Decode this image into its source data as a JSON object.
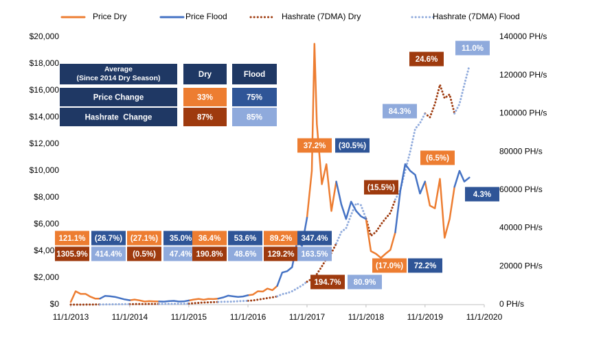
{
  "chart_data": {
    "type": "line",
    "x": [
      "11/1/2013",
      "12/1/2013",
      "1/1/2014",
      "2/1/2014",
      "3/1/2014",
      "4/1/2014",
      "5/1/2014",
      "6/1/2014",
      "7/1/2014",
      "8/1/2014",
      "9/1/2014",
      "10/1/2014",
      "11/1/2014",
      "12/1/2014",
      "1/1/2015",
      "2/1/2015",
      "3/1/2015",
      "4/1/2015",
      "5/1/2015",
      "6/1/2015",
      "7/1/2015",
      "8/1/2015",
      "9/1/2015",
      "10/1/2015",
      "11/1/2015",
      "12/1/2015",
      "1/1/2016",
      "2/1/2016",
      "3/1/2016",
      "4/1/2016",
      "5/1/2016",
      "6/1/2016",
      "7/1/2016",
      "8/1/2016",
      "9/1/2016",
      "10/1/2016",
      "11/1/2016",
      "12/1/2016",
      "1/1/2017",
      "2/1/2017",
      "3/1/2017",
      "4/1/2017",
      "5/1/2017",
      "6/1/2017",
      "7/1/2017",
      "8/1/2017",
      "9/1/2017",
      "10/1/2017",
      "11/1/2017",
      "12/1/2017",
      "12/17/2017",
      "1/1/2018",
      "2/1/2018",
      "3/1/2018",
      "4/1/2018",
      "5/1/2018",
      "6/1/2018",
      "7/1/2018",
      "8/1/2018",
      "9/1/2018",
      "10/1/2018",
      "11/1/2018",
      "12/1/2018",
      "1/1/2019",
      "2/1/2019",
      "3/1/2019",
      "4/1/2019",
      "5/1/2019",
      "6/1/2019",
      "7/1/2019",
      "8/1/2019",
      "9/1/2019",
      "10/1/2019",
      "11/1/2019",
      "12/1/2019",
      "1/1/2020",
      "2/1/2020",
      "3/1/2020",
      "4/1/2020",
      "5/1/2020",
      "6/1/2020",
      "7/1/2020",
      "8/1/2020"
    ],
    "series": [
      {
        "name": "Price Dry",
        "color": "#ED7D31",
        "style": "solid",
        "axis": "y",
        "values": [
          200,
          1000,
          800,
          800,
          600,
          450,
          450,
          null,
          null,
          null,
          null,
          null,
          330,
          380,
          320,
          230,
          260,
          245,
          235,
          null,
          null,
          null,
          null,
          null,
          310,
          380,
          430,
          370,
          430,
          415,
          450,
          null,
          null,
          null,
          null,
          null,
          700,
          750,
          1000,
          980,
          1200,
          1080,
          1400,
          null,
          null,
          null,
          null,
          null,
          6500,
          10000,
          19500,
          13500,
          9000,
          10500,
          7000,
          9200,
          null,
          null,
          null,
          null,
          null,
          6400,
          4000,
          3800,
          3500,
          3800,
          4100,
          5400,
          null,
          null,
          null,
          null,
          null,
          9200,
          7400,
          7200,
          9400,
          5000,
          6400,
          8800,
          null,
          null,
          null
        ]
      },
      {
        "name": "Price Flood",
        "color": "#4472C4",
        "style": "solid",
        "axis": "y",
        "values": [
          null,
          null,
          null,
          null,
          null,
          null,
          450,
          650,
          630,
          580,
          480,
          390,
          330,
          null,
          null,
          null,
          null,
          null,
          235,
          225,
          260,
          280,
          230,
          240,
          310,
          null,
          null,
          null,
          null,
          null,
          450,
          540,
          670,
          620,
          575,
          610,
          700,
          null,
          null,
          null,
          null,
          null,
          1400,
          2400,
          2500,
          2800,
          4700,
          4400,
          6500,
          null,
          null,
          null,
          null,
          null,
          null,
          9200,
          7500,
          6400,
          7700,
          7000,
          6600,
          6400,
          null,
          null,
          null,
          null,
          null,
          5400,
          8500,
          10500,
          10000,
          9700,
          8300,
          9200,
          null,
          null,
          null,
          null,
          null,
          8800,
          10000,
          9200,
          9500
        ]
      },
      {
        "name": "Hashrate (7DMA) Flood",
        "color": "#8FAADC",
        "style": "dotted",
        "axis": "y2",
        "values": [
          null,
          null,
          null,
          null,
          null,
          null,
          80,
          100,
          130,
          170,
          210,
          260,
          280,
          null,
          null,
          null,
          null,
          null,
          370,
          380,
          400,
          420,
          440,
          470,
          550,
          null,
          null,
          null,
          null,
          null,
          1400,
          1500,
          1500,
          1600,
          1800,
          1900,
          2000,
          null,
          null,
          null,
          null,
          null,
          4300,
          5500,
          6000,
          7000,
          8500,
          10000,
          12000,
          null,
          null,
          null,
          null,
          null,
          null,
          32000,
          38000,
          40000,
          47000,
          53000,
          52000,
          45000,
          null,
          null,
          null,
          null,
          null,
          55000,
          60000,
          70000,
          80000,
          92000,
          95000,
          100000,
          null,
          null,
          null,
          null,
          null,
          100000,
          105000,
          115000,
          125000
        ]
      },
      {
        "name": "Hashrate (7DMA) Dry",
        "color": "#9E3A0E",
        "style": "dotted",
        "axis": "y2",
        "values": [
          5,
          8,
          12,
          20,
          35,
          55,
          80,
          null,
          null,
          null,
          null,
          null,
          280,
          300,
          320,
          340,
          350,
          360,
          370,
          null,
          null,
          null,
          null,
          null,
          550,
          750,
          900,
          1100,
          1200,
          1300,
          1400,
          null,
          null,
          null,
          null,
          null,
          2000,
          2200,
          2600,
          3000,
          3400,
          3800,
          4300,
          null,
          null,
          null,
          null,
          null,
          12000,
          13500,
          14500,
          16000,
          20000,
          24000,
          27000,
          32000,
          null,
          null,
          null,
          null,
          null,
          45000,
          36000,
          38000,
          42000,
          45000,
          48000,
          55000,
          null,
          null,
          null,
          null,
          null,
          100000,
          98000,
          105000,
          115000,
          108000,
          110000,
          100000,
          null,
          null,
          null
        ]
      }
    ],
    "xlim": [
      "11/1/2013",
      "11/1/2020"
    ],
    "xticks": [
      "11/1/2013",
      "11/1/2014",
      "11/1/2015",
      "11/1/2016",
      "11/1/2017",
      "11/1/2018",
      "11/1/2019",
      "11/1/2020"
    ],
    "ylim": [
      0,
      20000
    ],
    "yticks": [
      {
        "value": 0,
        "label": "$0"
      },
      {
        "value": 2000,
        "label": "$2,000"
      },
      {
        "value": 4000,
        "label": "$4,000"
      },
      {
        "value": 6000,
        "label": "$6,000"
      },
      {
        "value": 8000,
        "label": "$8,000"
      },
      {
        "value": 10000,
        "label": "$10,000"
      },
      {
        "value": 12000,
        "label": "$12,000"
      },
      {
        "value": 14000,
        "label": "$14,000"
      },
      {
        "value": 16000,
        "label": "$16,000"
      },
      {
        "value": 18000,
        "label": "$18,000"
      },
      {
        "value": 20000,
        "label": "$20,000"
      }
    ],
    "y2lim": [
      0,
      140000
    ],
    "y2ticks": [
      {
        "value": 0,
        "label": "0 PH/s"
      },
      {
        "value": 20000,
        "label": "20000 PH/s"
      },
      {
        "value": 40000,
        "label": "40000 PH/s"
      },
      {
        "value": 60000,
        "label": "60000 PH/s"
      },
      {
        "value": 80000,
        "label": "80000 PH/s"
      },
      {
        "value": 100000,
        "label": "100000 PH/s"
      },
      {
        "value": 120000,
        "label": "120000 PH/s"
      },
      {
        "value": 140000,
        "label": "140000 PH/s"
      }
    ],
    "grid": false,
    "legend": "top",
    "annotations": [
      {
        "text": "121.1%",
        "color": "#ED7D31"
      },
      {
        "text": "(26.7%)",
        "color": "#2F5597"
      },
      {
        "text": "(27.1%)",
        "color": "#ED7D31"
      },
      {
        "text": "35.0%",
        "color": "#2F5597"
      },
      {
        "text": "36.4%",
        "color": "#ED7D31"
      },
      {
        "text": "53.6%",
        "color": "#2F5597"
      },
      {
        "text": "89.2%",
        "color": "#ED7D31"
      },
      {
        "text": "347.4%",
        "color": "#2F5597"
      },
      {
        "text": "1305.9%",
        "color": "#9E3A0E"
      },
      {
        "text": "414.4%",
        "color": "#8FAADC"
      },
      {
        "text": "(0.5%)",
        "color": "#9E3A0E"
      },
      {
        "text": "47.4%",
        "color": "#8FAADC"
      },
      {
        "text": "190.8%",
        "color": "#9E3A0E"
      },
      {
        "text": "48.6%",
        "color": "#8FAADC"
      },
      {
        "text": "129.2%",
        "color": "#9E3A0E"
      },
      {
        "text": "163.5%",
        "color": "#8FAADC"
      },
      {
        "text": "37.2%",
        "color": "#ED7D31"
      },
      {
        "text": "(30.5%)",
        "color": "#2F5597"
      },
      {
        "text": "194.7%",
        "color": "#9E3A0E"
      },
      {
        "text": "80.9%",
        "color": "#8FAADC"
      },
      {
        "text": "(15.5%)",
        "color": "#9E3A0E"
      },
      {
        "text": "(17.0%)",
        "color": "#ED7D31"
      },
      {
        "text": "72.2%",
        "color": "#2F5597"
      },
      {
        "text": "84.3%",
        "color": "#8FAADC"
      },
      {
        "text": "24.6%",
        "color": "#9E3A0E"
      },
      {
        "text": "11.0%",
        "color": "#8FAADC"
      },
      {
        "text": "(6.5%)",
        "color": "#ED7D31"
      },
      {
        "text": "4.3%",
        "color": "#2F5597"
      }
    ]
  },
  "table": {
    "columns": [
      "Average",
      "Dry",
      "Flood"
    ],
    "subtitle": "(Since 2014 Dry Season)",
    "rows": [
      [
        "Price Change",
        "33%",
        "75%"
      ],
      [
        "Hashrate  Change",
        "87%",
        "85%"
      ]
    ],
    "colors": [
      [
        "#1F3864",
        "#ED7D31",
        "#2F5597"
      ],
      [
        "#1F3864",
        "#9E3A0E",
        "#8FAADC"
      ]
    ],
    "header_color": "#1F3864"
  }
}
